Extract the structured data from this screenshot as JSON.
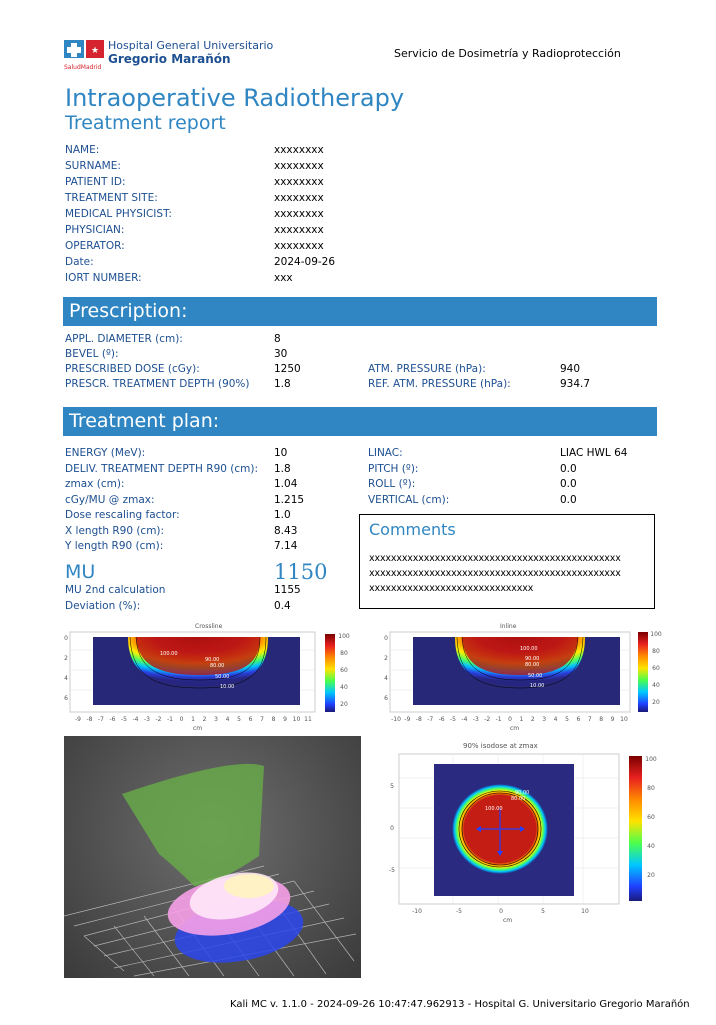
{
  "header": {
    "hospital_line1": "Hospital General Universitario",
    "hospital_line2": "Gregorio Marañón",
    "logo_sub": "SaludMadrid",
    "service": "Servicio de Dosimetría y Radioprotección"
  },
  "title": "Intraoperative Radiotherapy",
  "subtitle": "Treatment report",
  "patient": [
    {
      "label": "NAME:",
      "value": "xxxxxxxx"
    },
    {
      "label": "SURNAME:",
      "value": "xxxxxxxx"
    },
    {
      "label": "PATIENT ID:",
      "value": "xxxxxxxx"
    },
    {
      "label": "TREATMENT SITE:",
      "value": "xxxxxxxx"
    },
    {
      "label": "MEDICAL PHYSICIST:",
      "value": "xxxxxxxx"
    },
    {
      "label": "PHYSICIAN:",
      "value": "xxxxxxxx"
    },
    {
      "label": "OPERATOR:",
      "value": "xxxxxxxx"
    },
    {
      "label": "Date:",
      "value": "2024-09-26"
    },
    {
      "label": "IORT NUMBER:",
      "value": "xxx"
    }
  ],
  "prescription": {
    "heading": "Prescription:",
    "left": [
      {
        "label": "APPL. DIAMETER (cm):",
        "value": "8"
      },
      {
        "label": "BEVEL (º):",
        "value": "30"
      },
      {
        "label": "PRESCRIBED DOSE (cGy):",
        "value": "1250"
      },
      {
        "label": "PRESCR. TREATMENT DEPTH (90%)",
        "value": "1.8"
      }
    ],
    "right": [
      {
        "label": "ATM. PRESSURE (hPa):",
        "value": "940"
      },
      {
        "label": "REF. ATM. PRESSURE (hPa):",
        "value": "934.7"
      }
    ]
  },
  "plan": {
    "heading": "Treatment plan:",
    "left": [
      {
        "label": "ENERGY (MeV):",
        "value": "10"
      },
      {
        "label": "DELIV. TREATMENT DEPTH R90 (cm):",
        "value": "1.8"
      },
      {
        "label": "zmax (cm):",
        "value": "1.04"
      },
      {
        "label": "cGy/MU @ zmax:",
        "value": "1.215"
      },
      {
        "label": "Dose rescaling factor:",
        "value": "1.0"
      },
      {
        "label": "X length R90 (cm):",
        "value": "8.43"
      },
      {
        "label": "Y length R90 (cm):",
        "value": "7.14"
      }
    ],
    "right": [
      {
        "label": "LINAC:",
        "value": "LIAC HWL 64"
      },
      {
        "label": "PITCH (º):",
        "value": "0.0"
      },
      {
        "label": "ROLL (º):",
        "value": "0.0"
      },
      {
        "label": "VERTICAL (cm):",
        "value": "0.0"
      }
    ],
    "mu_label": "MU",
    "mu_value": "1150",
    "mu2_label": "MU 2nd calculation",
    "mu2_value": "1155",
    "dev_label": "Deviation (%):",
    "dev_value": "0.4",
    "comments_title": "Comments",
    "comments": [
      "xxxxxxxxxxxxxxxxxxxxxxxxxxxxxxxxxxxxxxxxxxxxxx",
      "xxxxxxxxxxxxxxxxxxxxxxxxxxxxxxxxxxxxxxxxxxxxxx",
      "xxxxxxxxxxxxxxxxxxxxxxxxxxxxxx"
    ]
  },
  "plots": {
    "crossline_title": "Crossline",
    "inline_title": "Inline",
    "isodose_title": "90% isodose at zmax",
    "xunit": "cm",
    "colorbar_ticks": [
      "100",
      "80",
      "60",
      "40",
      "20"
    ],
    "depth_ticks": [
      "0",
      "2",
      "4",
      "6"
    ],
    "profile_x_ticks": [
      "-9",
      "-8",
      "-7",
      "-6",
      "-5",
      "-4",
      "-3",
      "-2",
      "-1",
      "0",
      "1",
      "2",
      "3",
      "4",
      "5",
      "6",
      "7",
      "8",
      "9",
      "10",
      "11"
    ],
    "inline_x_ticks": [
      "-10",
      "-9",
      "-8",
      "-7",
      "-6",
      "-5",
      "-4",
      "-3",
      "-2",
      "-1",
      "0",
      "1",
      "2",
      "3",
      "4",
      "5",
      "6",
      "7",
      "8",
      "9",
      "10"
    ],
    "iso_x_ticks": [
      "-10",
      "-5",
      "0",
      "5",
      "10"
    ],
    "iso_y_ticks": [
      "5",
      "0",
      "-5"
    ],
    "iso_labels": [
      "100.00",
      "90.00",
      "80.00",
      "50.00",
      "10.00"
    ],
    "iso_map_labels": [
      "100.00",
      "90.00",
      "80.00"
    ]
  },
  "footer": "Kali MC v. 1.1.0 -  2024-09-26 10:47:47.962913 - Hospital G. Universitario Gregorio Marañón"
}
